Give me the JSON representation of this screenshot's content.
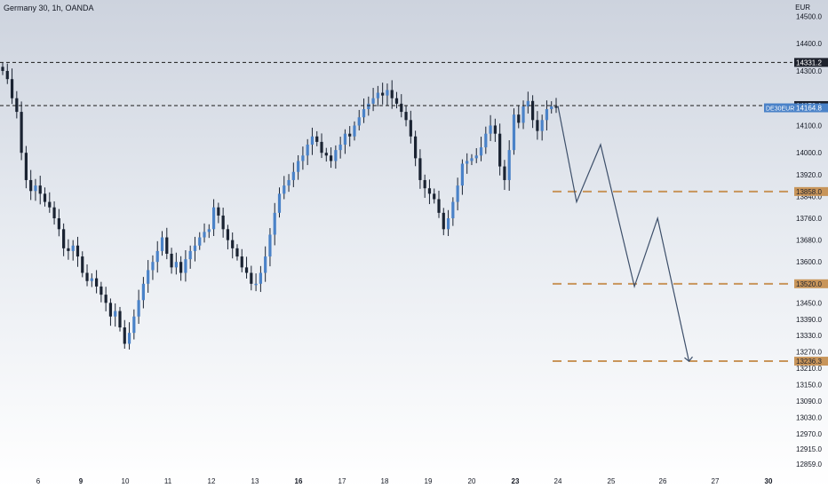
{
  "header": {
    "symbol_title": "Germany 30, 1h, OANDA",
    "currency": "EUR"
  },
  "colors": {
    "candle_up": "#4a82c8",
    "candle_down": "#1a2332",
    "wick": "#1a2332",
    "target_line": "#c8955a",
    "resistance_line": "#1a1a1a",
    "price_tag": "#4a82c8",
    "level_tag_dark": "#1e222d",
    "level_tag_target": "#c8955a",
    "projection": "#3d4f6a"
  },
  "chart_data": {
    "type": "candlestick",
    "title": "Germany 30, 1h, OANDA",
    "y_unit": "EUR",
    "ylim": [
      12830,
      14560
    ],
    "y_ticks": [
      14500.0,
      14400.0,
      14300.0,
      14100.0,
      14000.0,
      13920.0,
      13840.0,
      13760.0,
      13680.0,
      13600.0,
      13520.0,
      13450.0,
      13390.0,
      13330.0,
      13270.0,
      13210.0,
      13150.0,
      13090.0,
      13030.0,
      12970.0,
      12915.0,
      12859.0
    ],
    "x_ticks": [
      {
        "label": "6",
        "day": 6,
        "bold": false
      },
      {
        "label": "9",
        "day": 9,
        "bold": true
      },
      {
        "label": "10",
        "day": 10,
        "bold": false
      },
      {
        "label": "11",
        "day": 11,
        "bold": false
      },
      {
        "label": "12",
        "day": 12,
        "bold": false
      },
      {
        "label": "13",
        "day": 13,
        "bold": false
      },
      {
        "label": "16",
        "day": 16,
        "bold": true
      },
      {
        "label": "17",
        "day": 17,
        "bold": false
      },
      {
        "label": "18",
        "day": 18,
        "bold": false
      },
      {
        "label": "19",
        "day": 19,
        "bold": false
      },
      {
        "label": "20",
        "day": 20,
        "bold": false
      },
      {
        "label": "23",
        "day": 23,
        "bold": true
      },
      {
        "label": "24",
        "day": 24,
        "bold": false
      },
      {
        "label": "25",
        "day": 25,
        "bold": false
      },
      {
        "label": "26",
        "day": 26,
        "bold": false
      },
      {
        "label": "27",
        "day": 27,
        "bold": false
      },
      {
        "label": "30",
        "day": 30,
        "bold": true
      }
    ],
    "closes": [
      14300,
      14270,
      14200,
      14150,
      14000,
      13900,
      13860,
      13880,
      13850,
      13820,
      13800,
      13760,
      13720,
      13650,
      13640,
      13660,
      13620,
      13560,
      13530,
      13540,
      13510,
      13480,
      13450,
      13400,
      13420,
      13360,
      13300,
      13340,
      13400,
      13460,
      13520,
      13570,
      13600,
      13640,
      13690,
      13630,
      13580,
      13600,
      13560,
      13610,
      13640,
      13660,
      13690,
      13710,
      13720,
      13800,
      13770,
      13720,
      13680,
      13650,
      13620,
      13580,
      13560,
      13520,
      13520,
      13560,
      13620,
      13700,
      13780,
      13850,
      13880,
      13900,
      13930,
      13970,
      13990,
      14030,
      14060,
      14040,
      14000,
      13990,
      13970,
      14010,
      14030,
      14070,
      14060,
      14100,
      14130,
      14160,
      14180,
      14200,
      14220,
      14210,
      14230,
      14200,
      14180,
      14150,
      14120,
      14060,
      13980,
      13900,
      13870,
      13850,
      13830,
      13780,
      13720,
      13760,
      13820,
      13880,
      13960,
      13970,
      13980,
      13990,
      14020,
      14070,
      14100,
      14070,
      13950,
      13900,
      14010,
      14140,
      14110,
      14170,
      14190,
      14120,
      14080,
      14120,
      14160,
      14170,
      14165
    ],
    "levels": [
      {
        "price": 14331.2,
        "label": "14331.2",
        "style": "dashed-dark"
      },
      {
        "price": 14173.1,
        "label": "14173.1",
        "style": "dashed-dark"
      },
      {
        "price": 13858.0,
        "label": "13858.0",
        "style": "dashed-target"
      },
      {
        "price": 13520.0,
        "label": "13520.0",
        "style": "dashed-target"
      },
      {
        "price": 13236.3,
        "label": "13236.3",
        "style": "dashed-target"
      }
    ],
    "current_price": {
      "ticker": "DE30EUR",
      "price": "14164.8"
    },
    "projection_path": [
      {
        "day": 24.0,
        "price": 14172
      },
      {
        "day": 24.35,
        "price": 13820
      },
      {
        "day": 24.8,
        "price": 14030
      },
      {
        "day": 25.45,
        "price": 13510
      },
      {
        "day": 25.9,
        "price": 13760
      },
      {
        "day": 26.5,
        "price": 13236
      }
    ]
  }
}
